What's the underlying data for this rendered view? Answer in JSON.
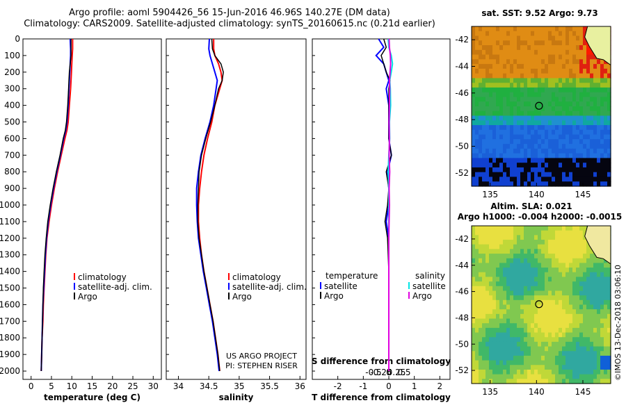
{
  "header": {
    "title_line1": "Argo profile: aoml 5904426_56 15-Jun-2016 46.96S 140.27E (DM data)",
    "title_line2": "Climatology: CARS2009. Satellite-adjusted climatology: synTS_20160615.nc (0.21d earlier)"
  },
  "chart_data": [
    {
      "type": "line",
      "id": "temperature-profile",
      "xlabel": "temperature (deg C)",
      "xlim": [
        -2,
        32
      ],
      "xticks": [
        "0",
        "5",
        "10",
        "15",
        "20",
        "25",
        "30"
      ],
      "ylim": [
        0,
        2050
      ],
      "yticks": [
        "0",
        "100",
        "200",
        "300",
        "400",
        "500",
        "600",
        "700",
        "800",
        "900",
        "1000",
        "1100",
        "1200",
        "1300",
        "1400",
        "1500",
        "1600",
        "1700",
        "1800",
        "1900",
        "2000"
      ],
      "legend": [
        "climatology",
        "satellite-adj. clim.",
        "Argo"
      ],
      "series": [
        {
          "name": "climatology",
          "color": "#ff0000",
          "depth": [
            0,
            60,
            100,
            150,
            200,
            250,
            300,
            400,
            500,
            550,
            600,
            700,
            800,
            900,
            1000,
            1100,
            1200,
            1300,
            1400,
            1500,
            1600,
            1700,
            1800,
            1900,
            2000
          ],
          "values": [
            10.2,
            10.2,
            10.1,
            10.0,
            9.9,
            9.8,
            9.7,
            9.4,
            9.1,
            8.8,
            8.3,
            7.4,
            6.5,
            5.7,
            5.0,
            4.4,
            3.9,
            3.6,
            3.4,
            3.2,
            3.0,
            2.9,
            2.7,
            2.6,
            2.5
          ]
        },
        {
          "name": "satellite-adj. clim.",
          "color": "#0000ff",
          "depth": [
            0,
            60,
            100,
            150,
            200,
            250,
            300,
            400,
            500,
            550,
            600,
            700,
            800,
            900,
            1000,
            1100,
            1200,
            1300,
            1400,
            1500,
            1600,
            1700,
            1800,
            1900,
            2000
          ],
          "values": [
            9.6,
            9.7,
            9.7,
            9.6,
            9.5,
            9.4,
            9.3,
            9.1,
            8.8,
            8.5,
            8.0,
            7.2,
            6.3,
            5.5,
            4.8,
            4.2,
            3.8,
            3.5,
            3.3,
            3.1,
            2.9,
            2.8,
            2.7,
            2.6,
            2.5
          ]
        },
        {
          "name": "Argo",
          "color": "#000000",
          "depth": [
            0,
            60,
            100,
            150,
            200,
            250,
            300,
            400,
            500,
            550,
            600,
            700,
            800,
            900,
            1000,
            1100,
            1200,
            1300,
            1400,
            1500,
            1600,
            1700,
            1800,
            1900,
            2000
          ],
          "values": [
            9.8,
            9.8,
            9.8,
            9.6,
            9.4,
            9.3,
            9.2,
            9.0,
            8.7,
            8.4,
            7.9,
            7.1,
            6.2,
            5.4,
            4.7,
            4.1,
            3.7,
            3.4,
            3.2,
            3.0,
            2.9,
            2.8,
            2.7,
            2.6,
            2.5
          ]
        }
      ]
    },
    {
      "type": "line",
      "id": "salinity-profile",
      "xlabel": "salinity",
      "xlim": [
        33.8,
        36.1
      ],
      "xticks": [
        "34",
        "34.5",
        "35",
        "35.5",
        "36"
      ],
      "ylim": [
        0,
        2050
      ],
      "legend": [
        "climatology",
        "satellite-adj. clim.",
        "Argo"
      ],
      "credit_line1": "US ARGO PROJECT",
      "credit_line2": "PI: STEPHEN RISER",
      "series": [
        {
          "name": "climatology",
          "color": "#ff0000",
          "depth": [
            0,
            60,
            100,
            150,
            200,
            250,
            300,
            400,
            500,
            600,
            700,
            800,
            900,
            1000,
            1100,
            1200,
            1300,
            1400,
            1500,
            1600,
            1700,
            1800,
            1900,
            2000
          ],
          "values": [
            34.58,
            34.58,
            34.6,
            34.66,
            34.7,
            34.72,
            34.68,
            34.6,
            34.55,
            34.48,
            34.42,
            34.38,
            34.35,
            34.33,
            34.33,
            34.35,
            34.38,
            34.42,
            34.47,
            34.52,
            34.57,
            34.61,
            34.65,
            34.68
          ]
        },
        {
          "name": "satellite-adj. clim.",
          "color": "#0000ff",
          "depth": [
            0,
            60,
            100,
            150,
            200,
            250,
            300,
            400,
            500,
            600,
            700,
            800,
            900,
            1000,
            1100,
            1200,
            1300,
            1400,
            1500,
            1600,
            1700,
            1800,
            1900,
            2000
          ],
          "values": [
            34.51,
            34.5,
            34.52,
            34.56,
            34.6,
            34.64,
            34.62,
            34.58,
            34.52,
            34.44,
            34.37,
            34.33,
            34.3,
            34.3,
            34.31,
            34.33,
            34.37,
            34.41,
            34.46,
            34.51,
            34.56,
            34.6,
            34.64,
            34.67
          ]
        },
        {
          "name": "Argo",
          "color": "#000000",
          "depth": [
            0,
            60,
            100,
            150,
            200,
            250,
            300,
            400,
            500,
            600,
            700,
            800,
            900,
            1000,
            1100,
            1200,
            1300,
            1400,
            1500,
            1600,
            1700,
            1800,
            1900,
            2000
          ],
          "values": [
            34.55,
            34.56,
            34.6,
            34.7,
            34.74,
            34.72,
            34.66,
            34.6,
            34.53,
            34.45,
            34.38,
            34.34,
            34.33,
            34.32,
            34.32,
            34.34,
            34.38,
            34.42,
            34.47,
            34.52,
            34.57,
            34.61,
            34.65,
            34.68
          ]
        }
      ]
    },
    {
      "type": "line",
      "id": "difference-profile",
      "xlabel": "T difference from climatology",
      "xlim": [
        -3,
        2.4
      ],
      "xticks": [
        "-2",
        "-1",
        "0",
        "1",
        "2"
      ],
      "top_xlabel": "S difference from climatology",
      "top_xticks": [
        "-0.5",
        "-0.25",
        "0",
        "0.25",
        "0.5"
      ],
      "ylim": [
        0,
        2050
      ],
      "legend_left_title": "temperature",
      "legend_left": [
        "satellite",
        "Argo"
      ],
      "legend_right_title": "salinity",
      "legend_right": [
        "satellite",
        "Argo"
      ],
      "series": [
        {
          "name": "T satellite",
          "color": "#0000ff",
          "depth": [
            0,
            50,
            100,
            150,
            200,
            250,
            300,
            400,
            500,
            600,
            700,
            800,
            900,
            1000,
            1100,
            1200,
            1400,
            1600,
            2000
          ],
          "values": [
            -0.4,
            -0.2,
            -0.5,
            -0.2,
            -0.1,
            0.0,
            -0.1,
            0.0,
            0.0,
            0.0,
            0.1,
            -0.05,
            0.0,
            0.0,
            -0.1,
            0.0,
            0.0,
            0.0,
            0.0
          ]
        },
        {
          "name": "T Argo",
          "color": "#000000",
          "depth": [
            0,
            50,
            100,
            150,
            200,
            250,
            300,
            400,
            500,
            600,
            700,
            800,
            900,
            1000,
            1100,
            1200,
            1400,
            1600,
            2000
          ],
          "values": [
            -0.2,
            -0.1,
            -0.3,
            -0.2,
            -0.1,
            0.05,
            0.0,
            0.0,
            0.0,
            0.0,
            0.1,
            -0.1,
            0.0,
            -0.05,
            -0.15,
            -0.05,
            0.0,
            0.0,
            0.0
          ]
        },
        {
          "name": "S satellite",
          "color": "#00e5e5",
          "depth": [
            0,
            50,
            100,
            150,
            200,
            250,
            300,
            400,
            500,
            600,
            700,
            800,
            900,
            1000,
            1100,
            1200,
            1400,
            1600,
            2000
          ],
          "values": [
            -0.02,
            0.0,
            0.08,
            0.12,
            0.08,
            0.03,
            0.05,
            0.06,
            0.02,
            0.03,
            0.0,
            -0.02,
            0.0,
            0.0,
            0.0,
            0.0,
            0.0,
            0.0,
            0.0
          ]
        },
        {
          "name": "S Argo",
          "color": "#e000e0",
          "depth": [
            0,
            50,
            100,
            150,
            200,
            250,
            300,
            400,
            500,
            600,
            700,
            800,
            900,
            1000,
            1100,
            1200,
            1400,
            1600,
            2000
          ],
          "values": [
            0.01,
            0.02,
            0.05,
            0.06,
            0.04,
            0.02,
            0.03,
            0.02,
            0.01,
            0.02,
            0.01,
            0.03,
            0.01,
            0.02,
            0.01,
            0.0,
            0.0,
            0.0,
            0.0
          ]
        }
      ]
    },
    {
      "type": "heatmap",
      "id": "sst-map",
      "title": "sat. SST: 9.52 Argo: 9.73",
      "xlim": [
        133,
        148
      ],
      "ylim": [
        -53,
        -41
      ],
      "xticks": [
        "135",
        "140",
        "145"
      ],
      "yticks": [
        "-42",
        "-44",
        "-46",
        "-48",
        "-50",
        "-52"
      ],
      "float_position": [
        140.27,
        -46.96
      ]
    },
    {
      "type": "heatmap",
      "id": "sla-map",
      "title_line1": "Altim. SLA: 0.021",
      "title_line2": "Argo h1000: -0.004 h2000: -0.0015",
      "xlim": [
        133,
        148
      ],
      "ylim": [
        -53,
        -41
      ],
      "xticks": [
        "135",
        "140",
        "145"
      ],
      "yticks": [
        "-42",
        "-44",
        "-46",
        "-48",
        "-50",
        "-52"
      ],
      "float_position": [
        140.27,
        -46.96
      ]
    }
  ],
  "footer": {
    "imos_stamp": "©IMOS 13-Dec-2018 03:06:10"
  },
  "colors": {
    "climatology": "#ff0000",
    "satellite": "#0000ff",
    "argo": "#000000",
    "s_satellite": "#00e5e5",
    "s_argo": "#e000e0"
  }
}
